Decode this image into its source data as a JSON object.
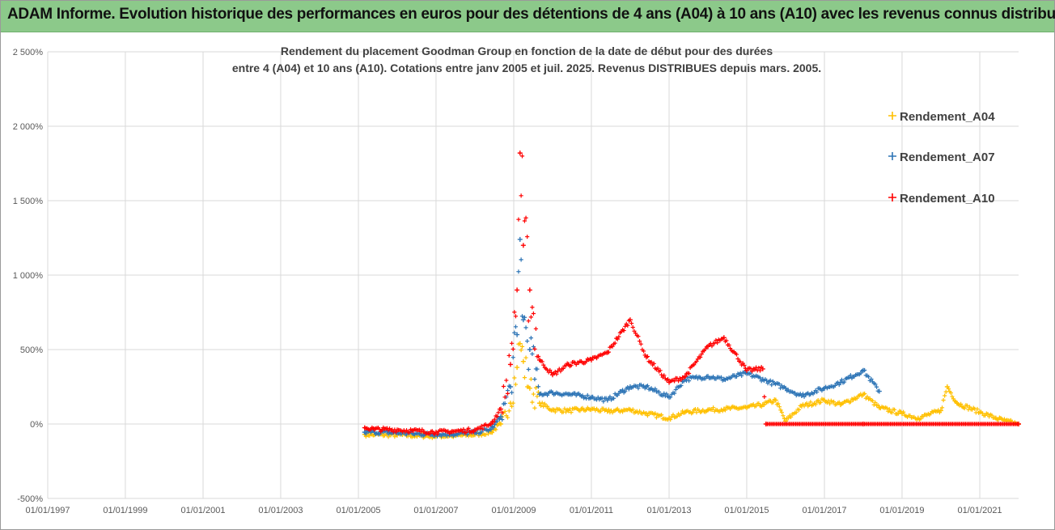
{
  "banner": {
    "text": "ADAM Informe. Evolution historique des performances en euros pour des détentions de 4 ans (A04) à 10 ans (A10) avec les revenus connus distribués"
  },
  "colors": {
    "banner_bg": "#8cc98a",
    "a04": "#ffc000",
    "a07": "#2e75b6",
    "a10": "#ff0000",
    "grid": "#d9d9d9"
  },
  "chart_data": {
    "type": "scatter",
    "title_lines": [
      "Rendement du placement Goodman Group en fonction de la date de début pour des durées",
      "entre 4 (A04) et 10 ans (A10). Cotations entre janv 2005 et juil. 2025. Revenus DISTRIBUES depuis mars. 2005."
    ],
    "y_ticks": [
      "-500%",
      "0%",
      "500%",
      "1 000%",
      "1 500%",
      "2 000%",
      "2 500%"
    ],
    "y_range": [
      -500,
      2500
    ],
    "y_unit": "%",
    "x_ticks": [
      "01/01/1997",
      "01/01/1999",
      "01/01/2001",
      "01/01/2003",
      "01/01/2005",
      "01/01/2007",
      "01/01/2009",
      "01/01/2011",
      "01/01/2013",
      "01/01/2015",
      "01/01/2017",
      "01/01/2019",
      "01/01/2021"
    ],
    "x_range": [
      "1997-01-01",
      "2022-01-01"
    ],
    "grid": true,
    "legend_position": "right",
    "marker": "+",
    "series": [
      {
        "name": "Rendement_A04",
        "color_key": "a04",
        "points": [
          [
            "2005-03-01",
            -70
          ],
          [
            "2005-06-01",
            -72
          ],
          [
            "2006-01-01",
            -75
          ],
          [
            "2006-06-01",
            -78
          ],
          [
            "2007-01-01",
            -82
          ],
          [
            "2007-06-01",
            -80
          ],
          [
            "2008-01-01",
            -72
          ],
          [
            "2008-06-01",
            -55
          ],
          [
            "2008-09-01",
            0
          ],
          [
            "2008-12-01",
            140
          ],
          [
            "2009-02-01",
            380
          ],
          [
            "2009-03-01",
            540
          ],
          [
            "2009-04-01",
            420
          ],
          [
            "2009-06-01",
            240
          ],
          [
            "2009-09-01",
            140
          ],
          [
            "2010-01-01",
            95
          ],
          [
            "2010-06-01",
            90
          ],
          [
            "2011-01-01",
            100
          ],
          [
            "2011-06-01",
            85
          ],
          [
            "2012-01-01",
            95
          ],
          [
            "2012-06-01",
            70
          ],
          [
            "2013-01-01",
            40
          ],
          [
            "2013-06-01",
            80
          ],
          [
            "2014-01-01",
            95
          ],
          [
            "2014-06-01",
            100
          ],
          [
            "2015-01-01",
            110
          ],
          [
            "2015-06-01",
            130
          ],
          [
            "2015-10-01",
            160
          ],
          [
            "2016-01-01",
            20
          ],
          [
            "2016-06-01",
            120
          ],
          [
            "2017-01-01",
            160
          ],
          [
            "2017-06-01",
            130
          ],
          [
            "2018-01-01",
            200
          ],
          [
            "2018-06-01",
            110
          ],
          [
            "2019-01-01",
            70
          ],
          [
            "2019-06-01",
            40
          ],
          [
            "2020-01-01",
            90
          ],
          [
            "2020-03-01",
            250
          ],
          [
            "2020-06-01",
            140
          ],
          [
            "2021-01-01",
            80
          ],
          [
            "2021-06-01",
            40
          ],
          [
            "2021-09-01",
            20
          ],
          [
            "2022-01-01",
            0
          ]
        ]
      },
      {
        "name": "Rendement_A07",
        "color_key": "a07",
        "points": [
          [
            "2005-03-01",
            -55
          ],
          [
            "2005-06-01",
            -55
          ],
          [
            "2006-01-01",
            -60
          ],
          [
            "2006-06-01",
            -65
          ],
          [
            "2007-01-01",
            -70
          ],
          [
            "2007-06-01",
            -68
          ],
          [
            "2008-01-01",
            -58
          ],
          [
            "2008-06-01",
            -35
          ],
          [
            "2008-09-01",
            50
          ],
          [
            "2008-12-01",
            250
          ],
          [
            "2009-02-01",
            600
          ],
          [
            "2009-03-01",
            1240
          ],
          [
            "2009-04-01",
            700
          ],
          [
            "2009-06-01",
            500
          ],
          [
            "2009-09-01",
            200
          ],
          [
            "2010-01-01",
            210
          ],
          [
            "2010-06-01",
            200
          ],
          [
            "2011-01-01",
            180
          ],
          [
            "2011-06-01",
            160
          ],
          [
            "2012-01-01",
            250
          ],
          [
            "2012-06-01",
            250
          ],
          [
            "2013-01-01",
            180
          ],
          [
            "2013-06-01",
            300
          ],
          [
            "2014-01-01",
            320
          ],
          [
            "2014-06-01",
            300
          ],
          [
            "2015-01-01",
            340
          ],
          [
            "2015-06-01",
            300
          ],
          [
            "2016-01-01",
            240
          ],
          [
            "2016-06-01",
            190
          ],
          [
            "2017-01-01",
            240
          ],
          [
            "2017-06-01",
            280
          ],
          [
            "2018-01-01",
            360
          ],
          [
            "2018-06-01",
            220
          ]
        ]
      },
      {
        "name": "Rendement_A10",
        "color_key": "a10",
        "points": [
          [
            "2005-03-01",
            -25
          ],
          [
            "2005-06-01",
            -35
          ],
          [
            "2006-01-01",
            -40
          ],
          [
            "2006-06-01",
            -45
          ],
          [
            "2007-01-01",
            -55
          ],
          [
            "2007-06-01",
            -50
          ],
          [
            "2008-01-01",
            -40
          ],
          [
            "2008-06-01",
            0
          ],
          [
            "2008-09-01",
            100
          ],
          [
            "2008-12-01",
            400
          ],
          [
            "2009-02-01",
            900
          ],
          [
            "2009-03-01",
            1820
          ],
          [
            "2009-04-01",
            1200
          ],
          [
            "2009-06-01",
            900
          ],
          [
            "2009-09-01",
            430
          ],
          [
            "2010-01-01",
            330
          ],
          [
            "2010-06-01",
            400
          ],
          [
            "2011-01-01",
            430
          ],
          [
            "2011-06-01",
            480
          ],
          [
            "2012-01-01",
            700
          ],
          [
            "2012-06-01",
            450
          ],
          [
            "2013-01-01",
            280
          ],
          [
            "2013-06-01",
            320
          ],
          [
            "2014-01-01",
            520
          ],
          [
            "2014-06-01",
            580
          ],
          [
            "2015-01-01",
            360
          ],
          [
            "2015-06-01",
            370
          ],
          [
            "2015-07-01",
            0
          ],
          [
            "2018-01-01",
            0
          ],
          [
            "2022-01-01",
            0
          ]
        ]
      }
    ]
  }
}
